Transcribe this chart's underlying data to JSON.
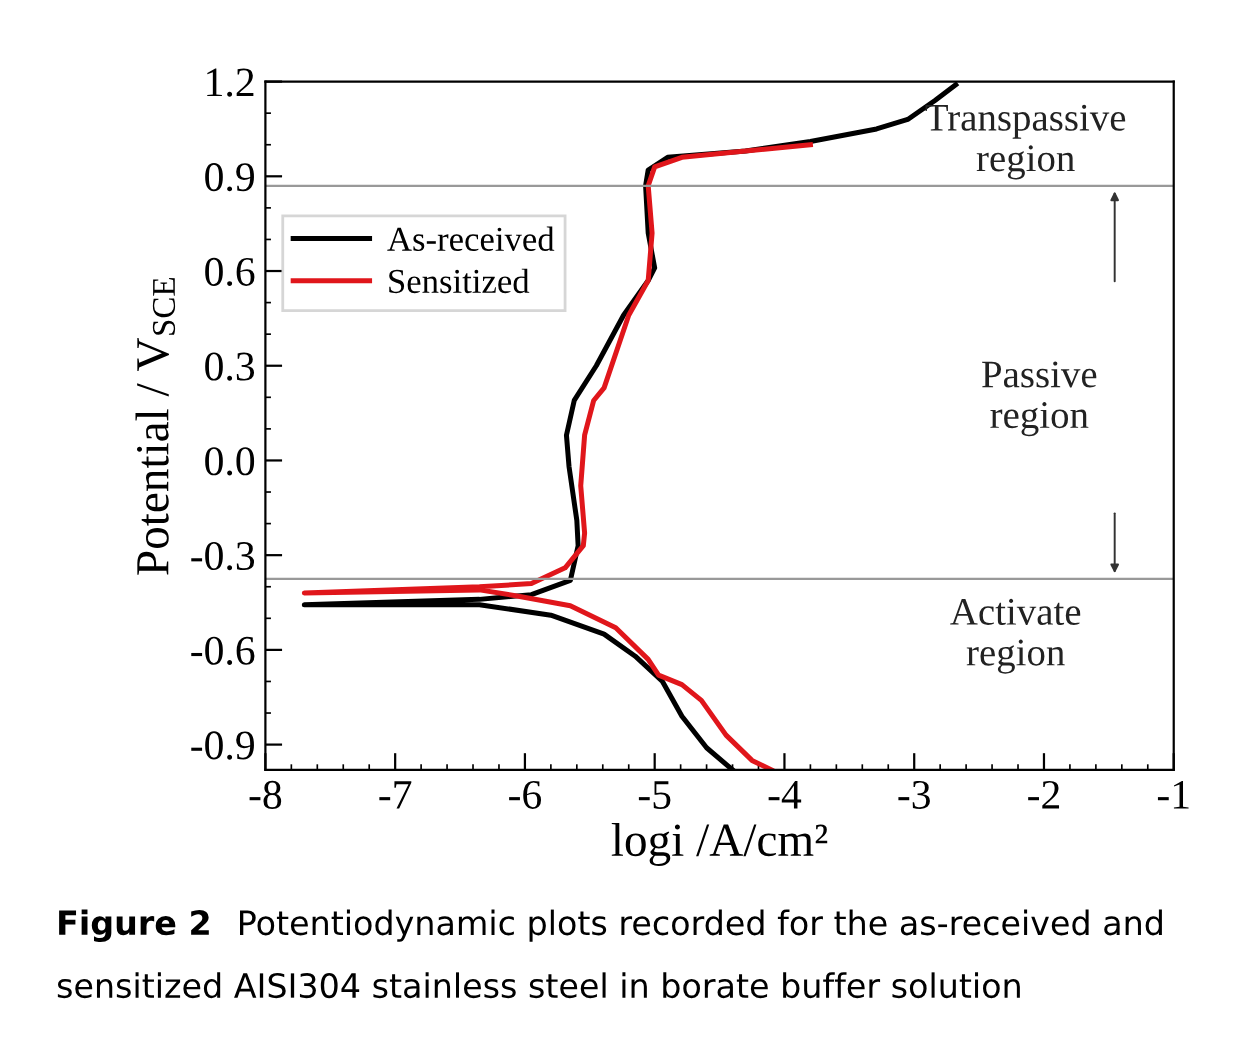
{
  "chart_data": {
    "type": "line",
    "xlabel": "logi /A/cm²",
    "ylabel": "Potential / V$_{SCE}$",
    "xlim": [
      -8,
      -1
    ],
    "xticks": [
      -8,
      -7,
      -6,
      -5,
      -4,
      -3,
      -2,
      -1
    ],
    "ylim": [
      -0.98,
      1.2
    ],
    "yticks": [
      {
        "value": -0.9,
        "label": "-0.9"
      },
      {
        "value": -0.6,
        "label": "-0.6"
      },
      {
        "value": -0.3,
        "label": "-0.3"
      },
      {
        "value": 0.0,
        "label": "0.0"
      },
      {
        "value": 0.3,
        "label": "0.3"
      },
      {
        "value": 0.6,
        "label": "0.6"
      },
      {
        "value": 0.9,
        "label": "0.9"
      },
      {
        "value": 1.2,
        "label": "1.2"
      }
    ],
    "grid": false,
    "legend": "top left",
    "line_style": "solid",
    "marker": "none",
    "series": [
      {
        "name": "As-received",
        "color": "#000000",
        "x": [
          -4.4,
          -4.6,
          -4.79,
          -4.94,
          -5.15,
          -5.39,
          -5.8,
          -6.35,
          -7.7,
          -6.35,
          -5.95,
          -5.65,
          -5.59,
          -5.6,
          -5.66,
          -5.68,
          -5.62,
          -5.45,
          -5.24,
          -5.05,
          -5.0,
          -5.05,
          -5.07,
          -5.05,
          -4.9,
          -4.3,
          -3.8,
          -3.29,
          -3.05,
          -2.84,
          -2.68
        ],
        "values": [
          -0.98,
          -0.91,
          -0.81,
          -0.7,
          -0.62,
          -0.55,
          -0.49,
          -0.457,
          -0.457,
          -0.44,
          -0.425,
          -0.38,
          -0.27,
          -0.19,
          -0.02,
          0.08,
          0.19,
          0.3,
          0.46,
          0.57,
          0.61,
          0.72,
          0.87,
          0.92,
          0.96,
          0.98,
          1.01,
          1.05,
          1.08,
          1.14,
          1.19
        ]
      },
      {
        "name": "Sensitized",
        "color": "#e0161b",
        "x": [
          -4.1,
          -4.25,
          -4.45,
          -4.64,
          -4.79,
          -4.97,
          -5.05,
          -5.3,
          -5.65,
          -6.05,
          -6.35,
          -7.7,
          -6.35,
          -5.95,
          -5.69,
          -5.55,
          -5.54,
          -5.57,
          -5.54,
          -5.47,
          -5.39,
          -5.2,
          -5.05,
          -5.02,
          -5.05,
          -5.0,
          -4.79,
          -4.3,
          -3.8
        ],
        "values": [
          -0.98,
          -0.95,
          -0.87,
          -0.76,
          -0.71,
          -0.68,
          -0.63,
          -0.53,
          -0.46,
          -0.43,
          -0.41,
          -0.42,
          -0.4,
          -0.39,
          -0.34,
          -0.27,
          -0.23,
          -0.08,
          0.08,
          0.19,
          0.23,
          0.46,
          0.57,
          0.72,
          0.87,
          0.93,
          0.96,
          0.98,
          1.0
        ]
      }
    ],
    "ref_lines": [
      {
        "axis": "y",
        "value": 0.87,
        "color": "#999999"
      },
      {
        "axis": "y",
        "value": -0.375,
        "color": "#999999"
      }
    ],
    "annotations": [
      "Transpassive\nregion",
      "Passive\nregion",
      "Activate\nregion",
      "Figure 2",
      "Potentiodynamic plots recorded for the as-received and\nsensitized AISI304 stainless steel in borate buffer solution"
    ]
  }
}
